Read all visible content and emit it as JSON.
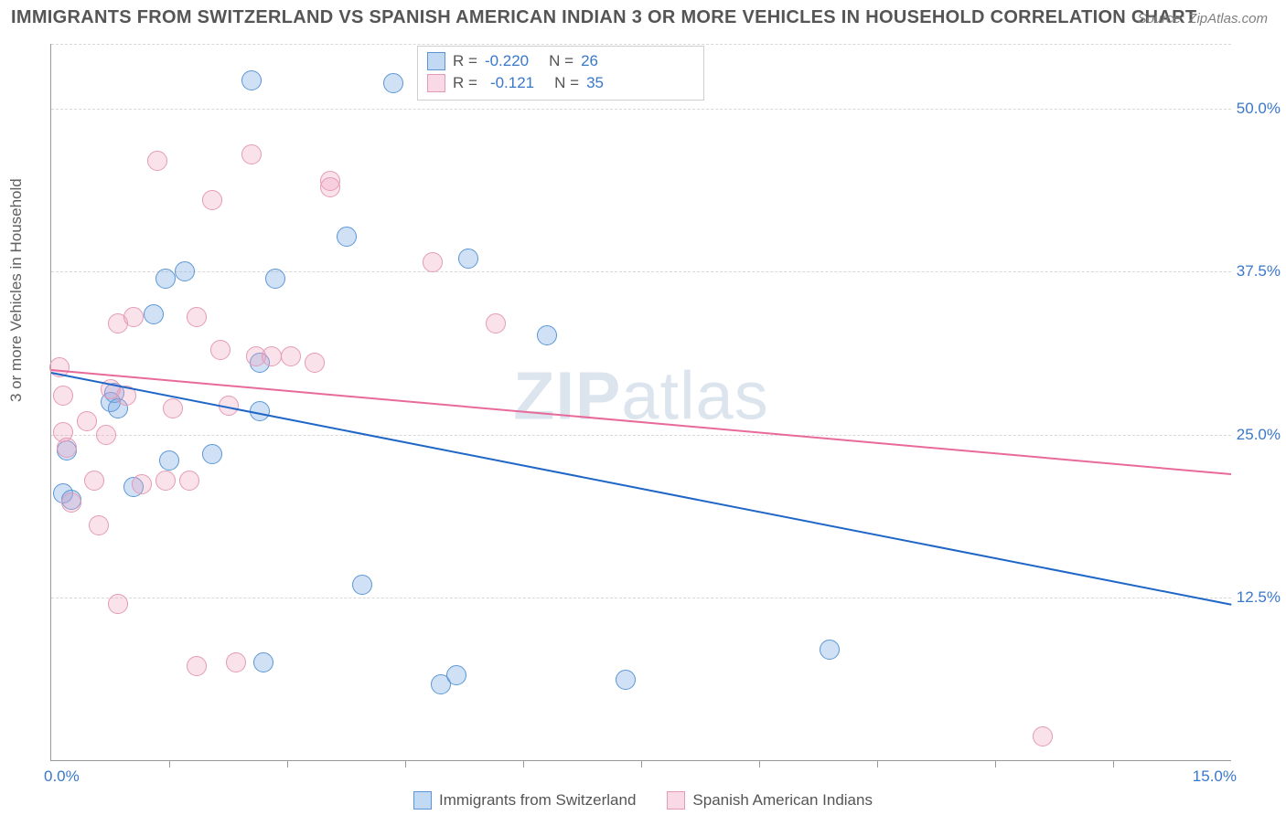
{
  "title": "IMMIGRANTS FROM SWITZERLAND VS SPANISH AMERICAN INDIAN 3 OR MORE VEHICLES IN HOUSEHOLD CORRELATION CHART",
  "source": "Source: ZipAtlas.com",
  "ylabel": "3 or more Vehicles in Household",
  "watermark_a": "ZIP",
  "watermark_b": "atlas",
  "chart": {
    "type": "scatter",
    "xlim": [
      0.0,
      15.0
    ],
    "ylim": [
      0.0,
      55.0
    ],
    "xticks_minor": [
      1.5,
      3.0,
      4.5,
      6.0,
      7.5,
      9.0,
      10.5,
      12.0,
      13.5
    ],
    "xtick_labels": {
      "left": "0.0%",
      "right": "15.0%"
    },
    "ygrid": [
      12.5,
      25.0,
      37.5,
      50.0,
      55.0
    ],
    "ytick_labels": [
      "12.5%",
      "25.0%",
      "37.5%",
      "50.0%"
    ],
    "background_color": "#ffffff",
    "grid_color": "#d8d8d8",
    "axis_color": "#999999",
    "series": [
      {
        "name": "Immigrants from Switzerland",
        "color_fill": "rgba(120,170,230,0.35)",
        "color_stroke": "#5a96d6",
        "r_label": "R =",
        "r_value": "-0.220",
        "n_label": "N =",
        "n_value": "26",
        "trend": {
          "x1": 0.0,
          "y1": 29.8,
          "x2": 15.0,
          "y2": 12.0,
          "color": "#1f66c7"
        },
        "points": [
          {
            "x": 0.15,
            "y": 20.5
          },
          {
            "x": 0.2,
            "y": 23.8
          },
          {
            "x": 0.25,
            "y": 20.0
          },
          {
            "x": 0.75,
            "y": 27.5
          },
          {
            "x": 0.8,
            "y": 28.2
          },
          {
            "x": 0.85,
            "y": 27.0
          },
          {
            "x": 1.05,
            "y": 21.0
          },
          {
            "x": 1.45,
            "y": 37.0
          },
          {
            "x": 1.3,
            "y": 34.2
          },
          {
            "x": 1.5,
            "y": 23.0
          },
          {
            "x": 1.7,
            "y": 37.5
          },
          {
            "x": 2.05,
            "y": 23.5
          },
          {
            "x": 2.55,
            "y": 52.2
          },
          {
            "x": 2.65,
            "y": 30.5
          },
          {
            "x": 2.7,
            "y": 7.5
          },
          {
            "x": 2.85,
            "y": 37.0
          },
          {
            "x": 2.65,
            "y": 26.8
          },
          {
            "x": 3.75,
            "y": 40.2
          },
          {
            "x": 3.95,
            "y": 13.5
          },
          {
            "x": 4.35,
            "y": 52.0
          },
          {
            "x": 4.95,
            "y": 5.8
          },
          {
            "x": 5.3,
            "y": 38.5
          },
          {
            "x": 5.15,
            "y": 6.5
          },
          {
            "x": 6.3,
            "y": 32.6
          },
          {
            "x": 7.3,
            "y": 6.2
          },
          {
            "x": 9.9,
            "y": 8.5
          }
        ]
      },
      {
        "name": "Spanish American Indians",
        "color_fill": "rgba(240,160,190,0.30)",
        "color_stroke": "#e49ab5",
        "r_label": "R =",
        "r_value": "-0.121",
        "n_label": "N =",
        "n_value": "35",
        "trend": {
          "x1": 0.0,
          "y1": 30.0,
          "x2": 15.0,
          "y2": 22.0,
          "color": "#e86a9a"
        },
        "points": [
          {
            "x": 0.1,
            "y": 30.2
          },
          {
            "x": 0.15,
            "y": 28.0
          },
          {
            "x": 0.15,
            "y": 25.2
          },
          {
            "x": 0.2,
            "y": 24.0
          },
          {
            "x": 0.25,
            "y": 19.8
          },
          {
            "x": 0.45,
            "y": 26.0
          },
          {
            "x": 0.55,
            "y": 21.5
          },
          {
            "x": 0.6,
            "y": 18.0
          },
          {
            "x": 0.7,
            "y": 25.0
          },
          {
            "x": 0.75,
            "y": 28.5
          },
          {
            "x": 0.85,
            "y": 33.5
          },
          {
            "x": 0.85,
            "y": 12.0
          },
          {
            "x": 1.05,
            "y": 34.0
          },
          {
            "x": 1.15,
            "y": 21.2
          },
          {
            "x": 1.35,
            "y": 46.0
          },
          {
            "x": 1.45,
            "y": 21.5
          },
          {
            "x": 1.55,
            "y": 27.0
          },
          {
            "x": 1.75,
            "y": 21.5
          },
          {
            "x": 1.85,
            "y": 34.0
          },
          {
            "x": 1.85,
            "y": 7.2
          },
          {
            "x": 2.05,
            "y": 43.0
          },
          {
            "x": 2.15,
            "y": 31.5
          },
          {
            "x": 2.25,
            "y": 27.2
          },
          {
            "x": 2.35,
            "y": 7.5
          },
          {
            "x": 2.55,
            "y": 46.5
          },
          {
            "x": 2.6,
            "y": 31.0
          },
          {
            "x": 2.8,
            "y": 31.0
          },
          {
            "x": 3.05,
            "y": 31.0
          },
          {
            "x": 3.35,
            "y": 30.5
          },
          {
            "x": 3.55,
            "y": 44.5
          },
          {
            "x": 3.55,
            "y": 44.0
          },
          {
            "x": 4.85,
            "y": 38.2
          },
          {
            "x": 5.65,
            "y": 33.5
          },
          {
            "x": 12.6,
            "y": 1.8
          },
          {
            "x": 0.95,
            "y": 28.0
          }
        ]
      }
    ]
  },
  "legend_bottom": {
    "a": "Immigrants from Switzerland",
    "b": "Spanish American Indians"
  }
}
